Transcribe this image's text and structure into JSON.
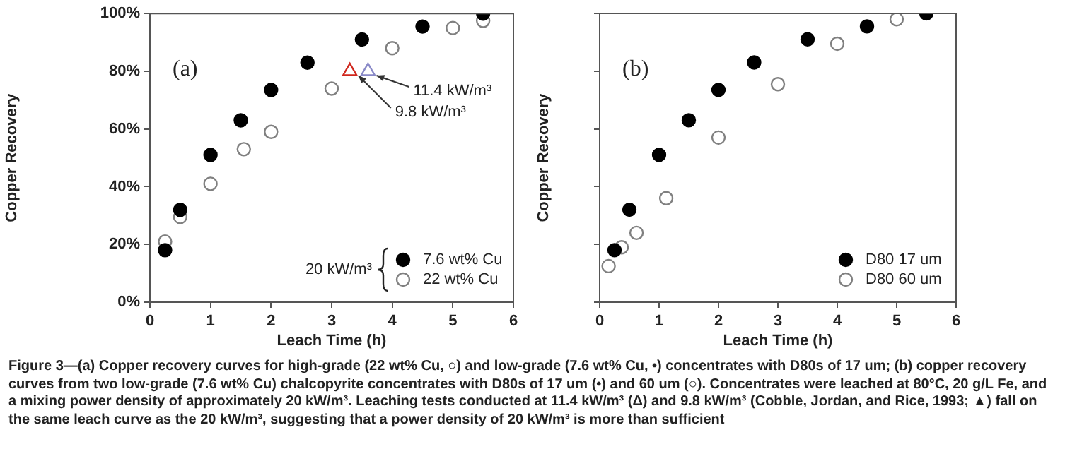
{
  "chart_data": [
    {
      "type": "scatter",
      "title": "(a)",
      "xlabel": "Leach Time (h)",
      "ylabel": "Copper Recovery",
      "legend_title": "20 kW/m³",
      "legend": "bottom right",
      "marker": "circle",
      "grid": false,
      "xlim": [
        0,
        6
      ],
      "xticks": [
        0,
        1,
        2,
        3,
        4,
        5,
        6
      ],
      "ylim": [
        0,
        100
      ],
      "yticks": [
        {
          "value": 0,
          "label": "0%"
        },
        {
          "value": 20,
          "label": "20%"
        },
        {
          "value": 40,
          "label": "40%"
        },
        {
          "value": 60,
          "label": "60%"
        },
        {
          "value": 80,
          "label": "80%"
        },
        {
          "value": 100,
          "label": "100%"
        }
      ],
      "series": [
        {
          "name": "7.6 wt% Cu",
          "color": "#000000",
          "x": [
            0.25,
            0.5,
            1,
            1.5,
            2,
            2.6,
            3.5,
            4.5,
            5.5
          ],
          "values": [
            18,
            32,
            51,
            63,
            73.5,
            83,
            91,
            95.5,
            100
          ]
        },
        {
          "name": "22 wt% Cu",
          "color": "#808080",
          "x": [
            0.25,
            0.5,
            1,
            1.55,
            2,
            3,
            4,
            5,
            5.5
          ],
          "values": [
            21,
            29.5,
            41,
            53,
            59,
            74,
            88,
            95,
            97.5
          ]
        },
        {
          "color": "#d0281e",
          "marker": "triangle",
          "x": [
            3.3
          ],
          "values": [
            80
          ]
        },
        {
          "color": "#8a8ac8",
          "marker": "triangle",
          "x": [
            3.6
          ],
          "values": [
            80
          ]
        }
      ],
      "annotations": [
        {
          "text": "11.4 kW/m³",
          "x": 3.6,
          "y": 80
        },
        {
          "text": "9.8 kW/m³",
          "x": 3.3,
          "y": 80
        },
        "Figure 3—(a) Copper recovery curves for high-grade (22 wt% Cu, ○) and low-grade (7.6 wt% Cu, •) concentrates with D80s of 17 um; (b) copper recovery curves from two low-grade (7.6 wt% Cu) chalcopyrite concentrates with D80s of 17 um (•) and 60 um (○). Concentrates were leached at 80°C, 20 g/L Fe, and a mixing power density of approximately 20 kW/m³. Leaching tests conducted at 11.4 kW/m³ (Δ) and 9.8 kW/m³ (Cobble, Jordan, and Rice, 1993; ▲) fall on the same leach curve as the 20 kW/m³, suggesting that a power density of 20 kW/m³ is more than sufficient"
      ]
    },
    {
      "type": "scatter",
      "title": "(b)",
      "xlabel": "Leach Time (h)",
      "ylabel": "Copper Recovery",
      "legend": "bottom right",
      "marker": "circle",
      "grid": false,
      "tick_labels": "x",
      "xlim": [
        0,
        6
      ],
      "xticks": [
        0,
        1,
        2,
        3,
        4,
        5,
        6
      ],
      "ylim": [
        0,
        100
      ],
      "yticks": [
        {
          "value": 0,
          "label": null
        },
        {
          "value": 20,
          "label": null
        },
        {
          "value": 40,
          "label": null
        },
        {
          "value": 60,
          "label": null
        },
        {
          "value": 80,
          "label": null
        },
        {
          "value": 100,
          "label": null
        }
      ],
      "series": [
        {
          "name": "D80 17 um",
          "color": "#000000",
          "x": [
            0.25,
            0.5,
            1,
            1.5,
            2,
            2.6,
            3.5,
            4.5,
            5.5
          ],
          "values": [
            18,
            32,
            51,
            63,
            73.5,
            83,
            91,
            95.5,
            100
          ]
        },
        {
          "name": "D80 60 um",
          "color": "#808080",
          "x": [
            0.15,
            0.37,
            0.62,
            1.12,
            2,
            3,
            4,
            5
          ],
          "values": [
            12.5,
            19,
            24,
            36,
            57,
            75.5,
            89.5,
            98
          ]
        }
      ]
    }
  ]
}
